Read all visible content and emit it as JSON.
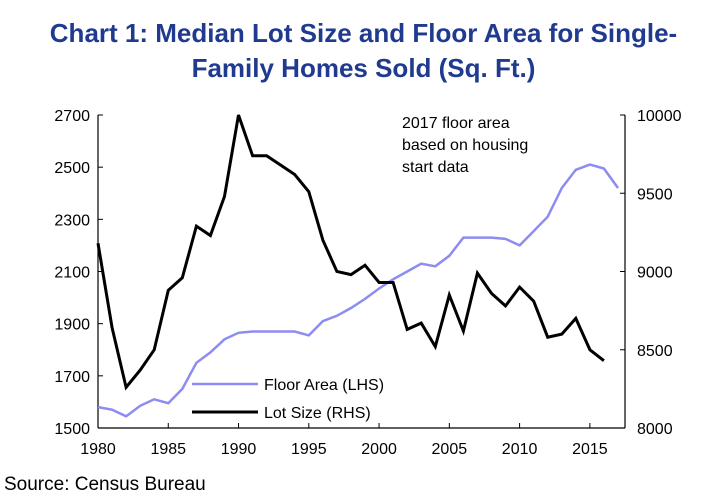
{
  "title": {
    "line1": "Chart 1: Median Lot Size and Floor Area for Single-",
    "line2": "Family Homes Sold (Sq. Ft.)"
  },
  "source": "Source: Census Bureau",
  "annotation": [
    "2017 floor area",
    "based on housing",
    "start data"
  ],
  "legend": {
    "floor_area": "Floor Area (LHS)",
    "lot_size": "Lot Size (RHS)"
  },
  "colors": {
    "floor_area": "#8c8cf2",
    "lot_size": "#000000",
    "title": "#1f3a8f"
  },
  "chart_data": {
    "type": "line",
    "title": "Chart 1: Median Lot Size and Floor Area for Single-Family Homes Sold (Sq. Ft.)",
    "xlabel": "",
    "ylabel_left": "",
    "ylabel_right": "",
    "xlim": [
      1980,
      2017.5
    ],
    "ylim_left": [
      1500,
      2700
    ],
    "ylim_right": [
      8000,
      10000
    ],
    "x_ticks": [
      1980,
      1985,
      1990,
      1995,
      2000,
      2005,
      2010,
      2015
    ],
    "y_ticks_left": [
      1500,
      1700,
      1900,
      2100,
      2300,
      2500,
      2700
    ],
    "y_ticks_right": [
      8000,
      8500,
      9000,
      9500,
      10000
    ],
    "series": [
      {
        "name": "Floor Area (LHS)",
        "axis": "left",
        "x": [
          1980,
          1981,
          1982,
          1983,
          1984,
          1985,
          1986,
          1987,
          1988,
          1989,
          1990,
          1991,
          1992,
          1993,
          1994,
          1995,
          1996,
          1997,
          1998,
          1999,
          2000,
          2001,
          2002,
          2003,
          2004,
          2005,
          2006,
          2007,
          2008,
          2009,
          2010,
          2011,
          2012,
          2013,
          2014,
          2015,
          2016,
          2017
        ],
        "values": [
          1580,
          1570,
          1545,
          1585,
          1610,
          1595,
          1650,
          1750,
          1790,
          1840,
          1865,
          1870,
          1870,
          1870,
          1870,
          1855,
          1910,
          1930,
          1960,
          1995,
          2035,
          2070,
          2100,
          2130,
          2120,
          2160,
          2230,
          2230,
          2230,
          2225,
          2200,
          2255,
          2310,
          2420,
          2490,
          2510,
          2495,
          2420
        ]
      },
      {
        "name": "Lot Size (RHS)",
        "axis": "right",
        "x": [
          1980,
          1981,
          1982,
          1983,
          1984,
          1985,
          1986,
          1987,
          1988,
          1989,
          1990,
          1991,
          1992,
          1993,
          1994,
          1995,
          1996,
          1997,
          1998,
          1999,
          2000,
          2001,
          2002,
          2003,
          2004,
          2005,
          2006,
          2007,
          2008,
          2009,
          2010,
          2011,
          2012,
          2013,
          2014,
          2015,
          2016,
          2017
        ],
        "values": [
          9180,
          8640,
          8260,
          8370,
          8500,
          8880,
          8960,
          9290,
          9230,
          9480,
          10000,
          9740,
          9740,
          9680,
          9620,
          9510,
          9200,
          9000,
          8980,
          9040,
          8930,
          8930,
          8630,
          8670,
          8520,
          8850,
          8620,
          8990,
          8860,
          8780,
          8900,
          8810,
          8580,
          8600,
          8700,
          8500,
          8430,
          null
        ]
      }
    ]
  }
}
